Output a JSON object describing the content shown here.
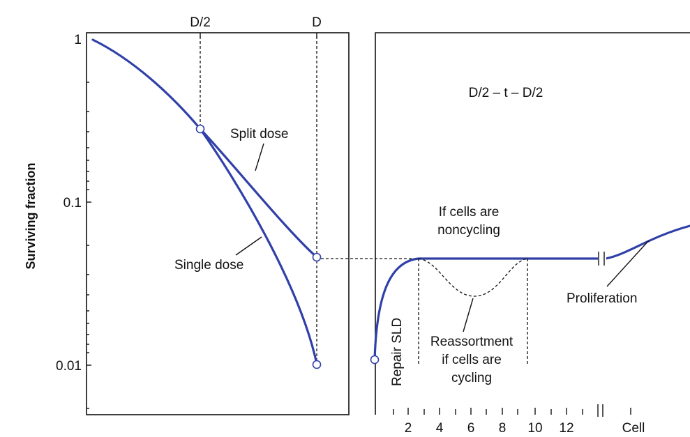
{
  "top_labels": {
    "half_dose": "D/2",
    "full_dose": "D"
  },
  "y_axis": {
    "label": "Surviving fraction",
    "ticks": [
      "1",
      "0.1",
      "0.01"
    ]
  },
  "left_panel": {
    "split_dose_label": "Split dose",
    "single_dose_label": "Single dose"
  },
  "right_panel": {
    "schedule_label": "D/2 – t – D/2",
    "noncycling_line1": "If cells are",
    "noncycling_line2": "noncycling",
    "repair_label": "Repair SLD",
    "reassortment_line1": "Reassortment",
    "reassortment_line2": "if cells are",
    "reassortment_line3": "cycling",
    "proliferation_label": "Proliferation",
    "x_ticks": [
      "2",
      "4",
      "6",
      "8",
      "10",
      "12"
    ],
    "x_tail_label": "Cell"
  },
  "colors": {
    "curve": "#3040a8",
    "ink": "#111111",
    "background": "#ffffff"
  }
}
